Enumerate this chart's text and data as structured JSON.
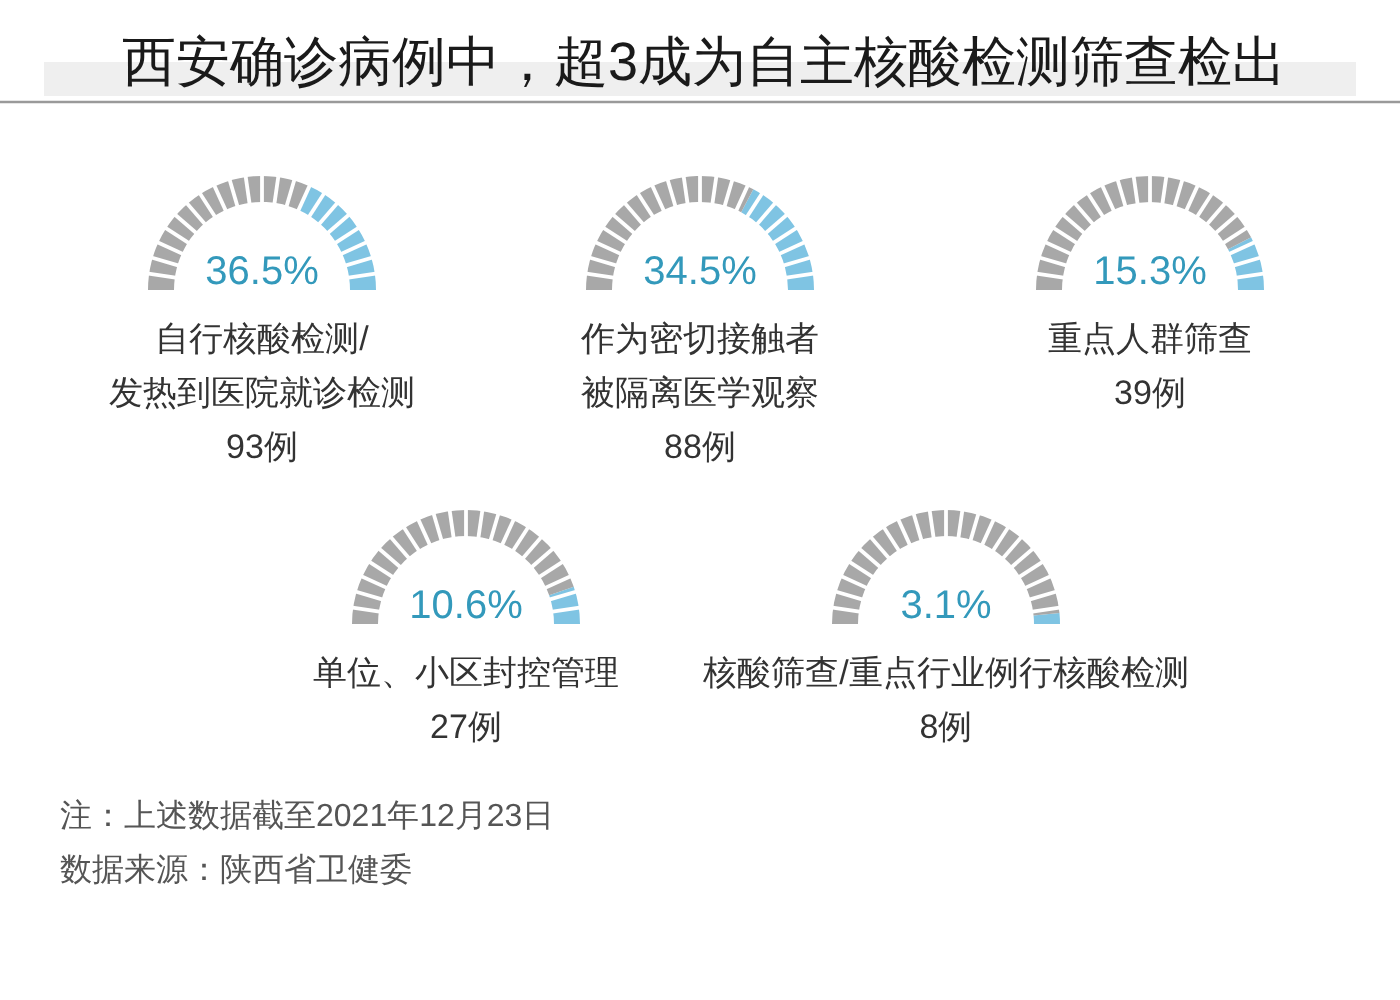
{
  "chart_data": [
    {
      "type": "other",
      "title": "西安确诊病例中，超3成为自主核酸检测筛查检出",
      "annotations": [
        "注：上述数据截至2021年12月23日",
        "数据来源：陕西省卫健委"
      ]
    },
    {
      "type": "donut",
      "title": "自行核酸检测/发热到医院就诊检测",
      "categories": [
        null,
        null
      ],
      "values": [
        36.5,
        63.5
      ],
      "colors": [
        "#7fc4e3",
        "#a8a8a8"
      ],
      "annotations": [
        "36.5%",
        "93例"
      ]
    },
    {
      "type": "donut",
      "title": "作为密切接触者被隔离医学观察",
      "categories": [
        null,
        null
      ],
      "values": [
        34.5,
        65.5
      ],
      "colors": [
        "#7fc4e3",
        "#a8a8a8"
      ],
      "annotations": [
        "34.5%",
        "88例"
      ]
    },
    {
      "type": "donut",
      "title": "重点人群筛查",
      "categories": [
        null,
        null
      ],
      "values": [
        15.3,
        84.7
      ],
      "colors": [
        "#7fc4e3",
        "#a8a8a8"
      ],
      "annotations": [
        "15.3%",
        "39例"
      ]
    },
    {
      "type": "donut",
      "title": "单位、小区封控管理",
      "categories": [
        null,
        null
      ],
      "values": [
        10.6,
        89.4
      ],
      "colors": [
        "#7fc4e3",
        "#a8a8a8"
      ],
      "annotations": [
        "10.6%",
        "27例"
      ]
    },
    {
      "type": "donut",
      "title": "核酸筛查/重点行业例行核酸检测",
      "categories": [
        null,
        null
      ],
      "values": [
        3.1,
        96.9
      ],
      "colors": [
        "#7fc4e3",
        "#a8a8a8"
      ],
      "annotations": [
        "3.1%",
        "8例"
      ]
    }
  ]
}
